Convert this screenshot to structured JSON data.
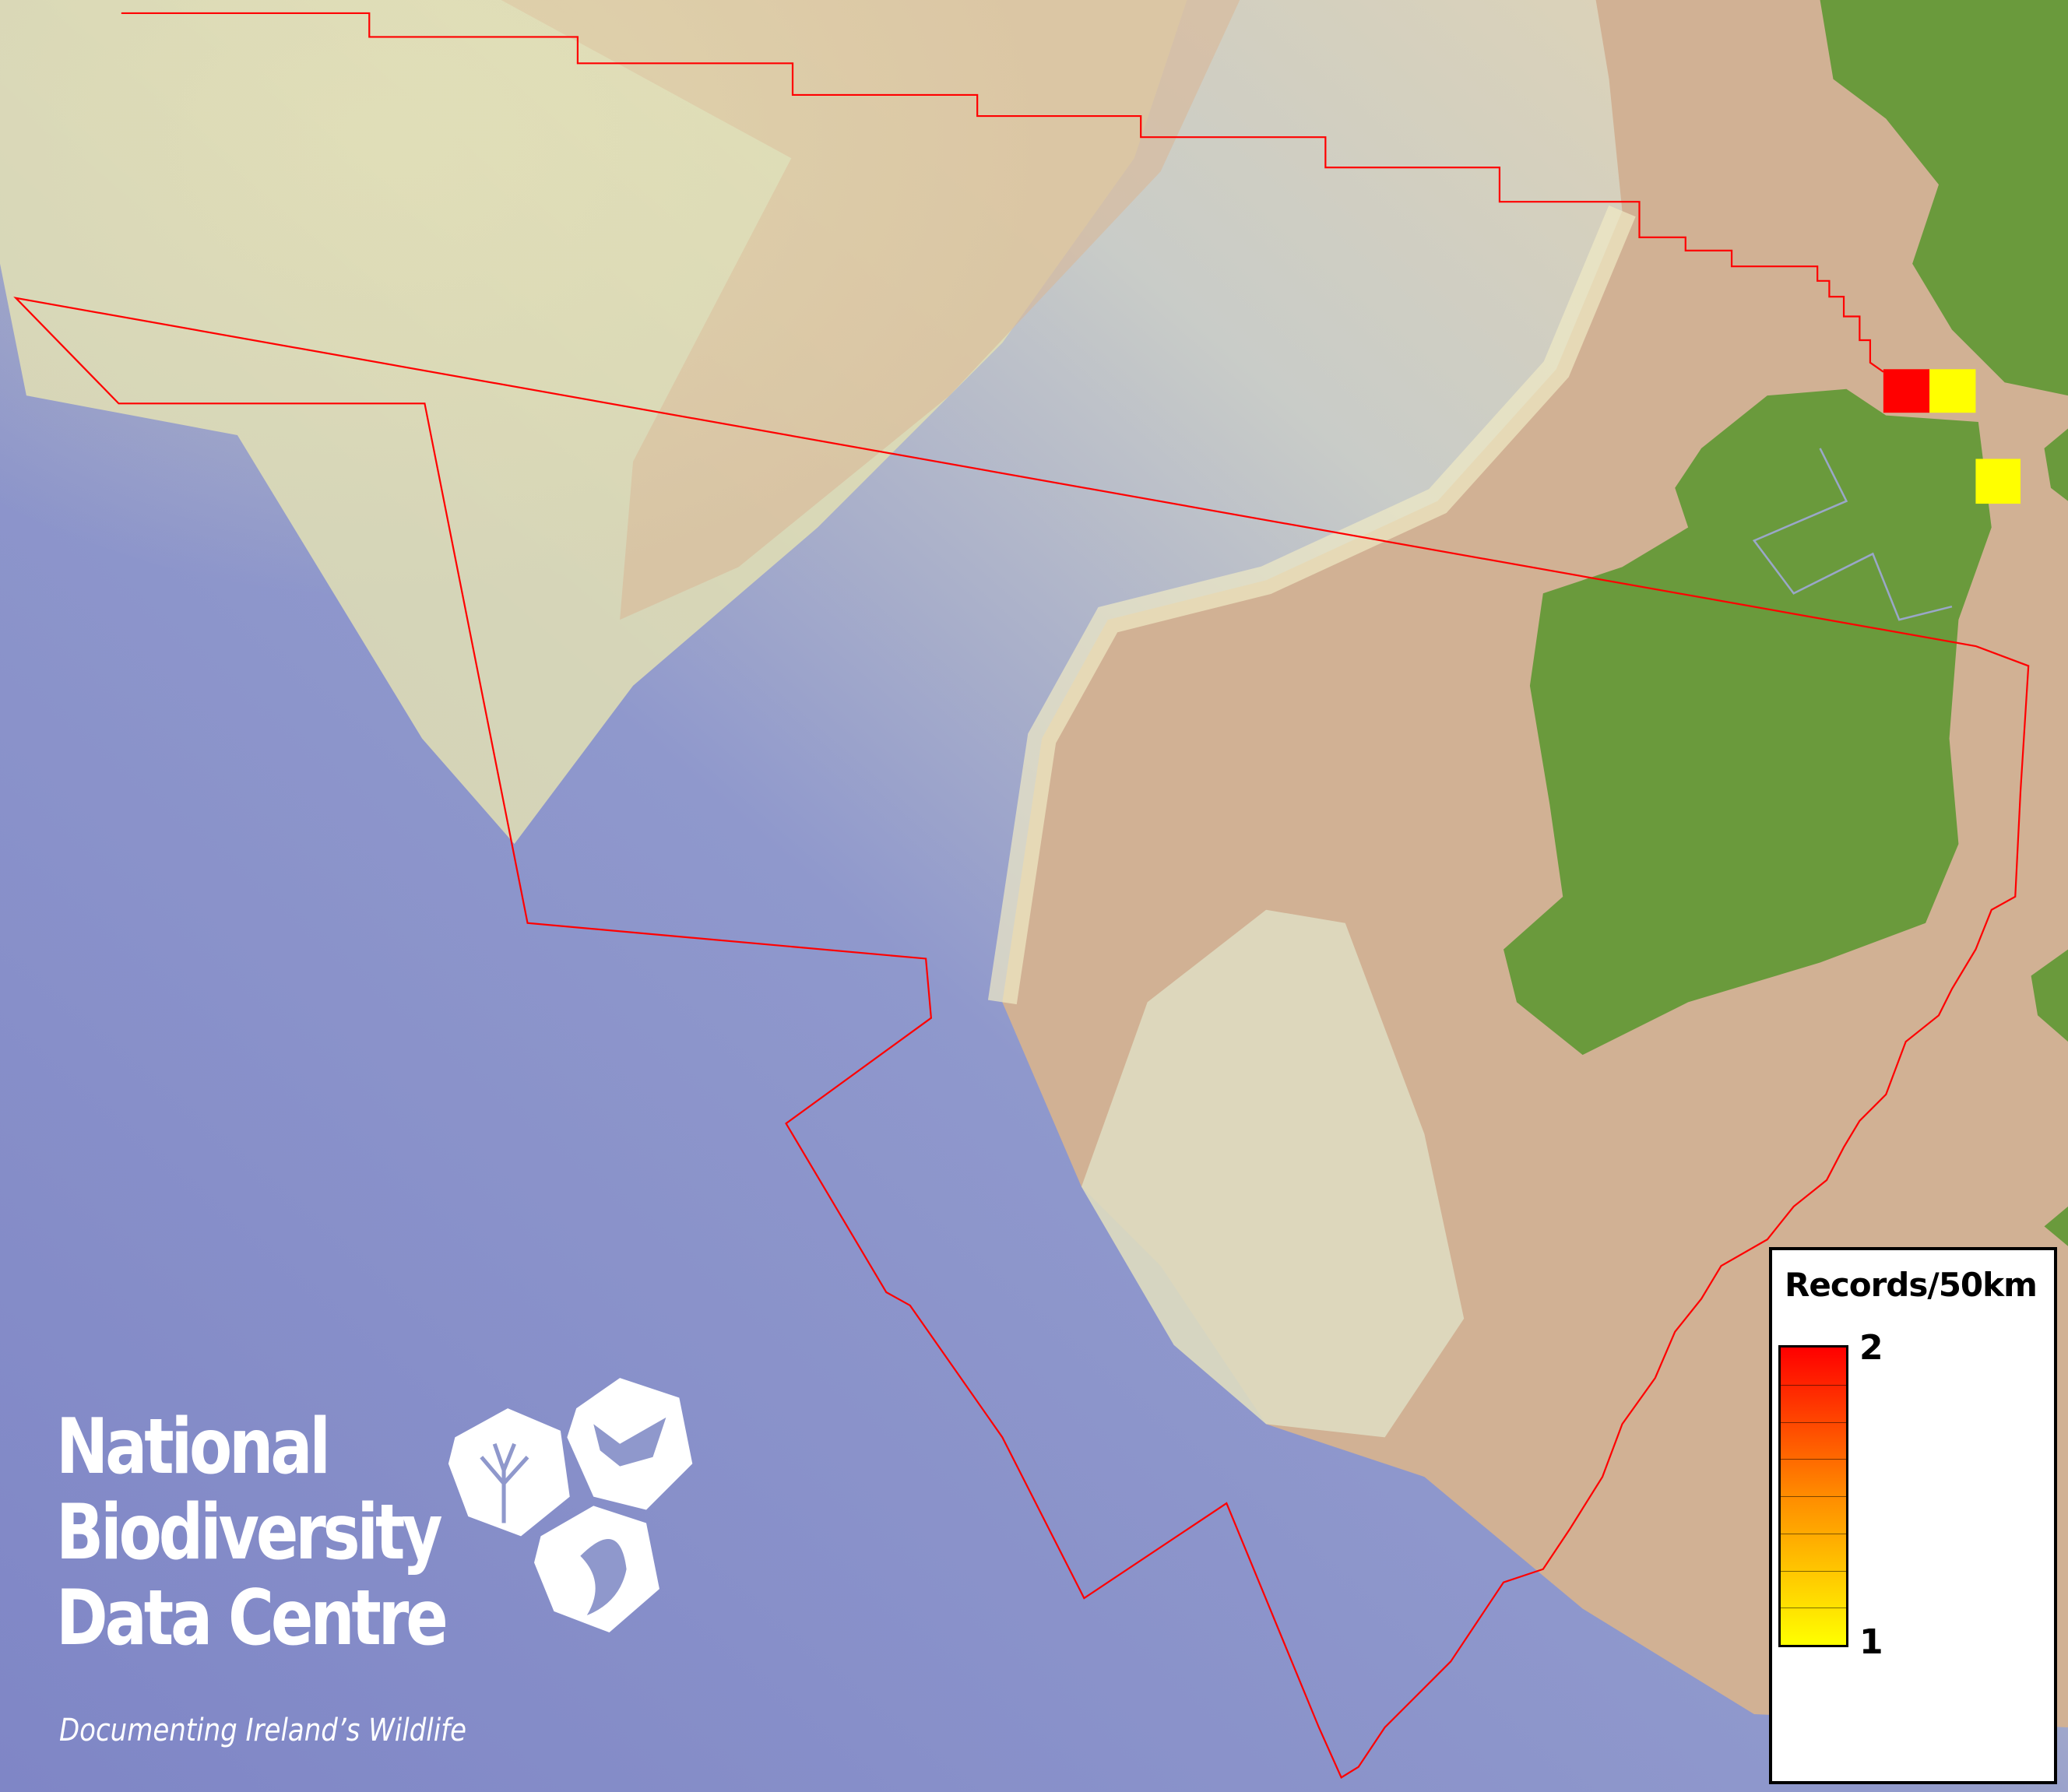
{
  "map": {
    "boundary_color": "#ff0000",
    "land_color": "#6a9a3c",
    "records": [
      {
        "value": 2,
        "color": "#ff0000"
      },
      {
        "value": 1,
        "color": "#ffff00"
      },
      {
        "value": 1,
        "color": "#ffff00"
      }
    ]
  },
  "legend": {
    "title": "Records/50km",
    "max_label": "2",
    "min_label": "1",
    "color_low": "#ffff00",
    "color_high": "#ff0000"
  },
  "logo": {
    "line1": "National",
    "line2": "Biodiversity",
    "line3": "Data Centre",
    "tagline": "Documenting Ireland’s Wildlife"
  }
}
